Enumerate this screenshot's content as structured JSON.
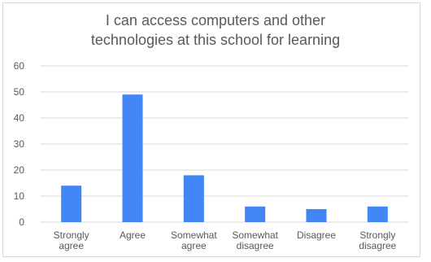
{
  "chart_data": {
    "type": "bar",
    "title_lines": [
      "I can access computers and other",
      "technologies at this school for learning"
    ],
    "categories": [
      [
        "Strongly",
        "agree"
      ],
      [
        "Agree"
      ],
      [
        "Somewhat",
        "agree"
      ],
      [
        "Somewhat",
        "disagree"
      ],
      [
        "Disagree"
      ],
      [
        "Strongly",
        "disagree"
      ]
    ],
    "values": [
      14,
      49,
      18,
      6,
      5,
      6
    ],
    "y_ticks": [
      "0",
      "10",
      "20",
      "30",
      "40",
      "50",
      "60"
    ],
    "ylim": [
      0,
      60
    ],
    "grid": true,
    "legend": "none",
    "bar_color": "#4285f4",
    "grid_color": "#d9d9d9"
  }
}
